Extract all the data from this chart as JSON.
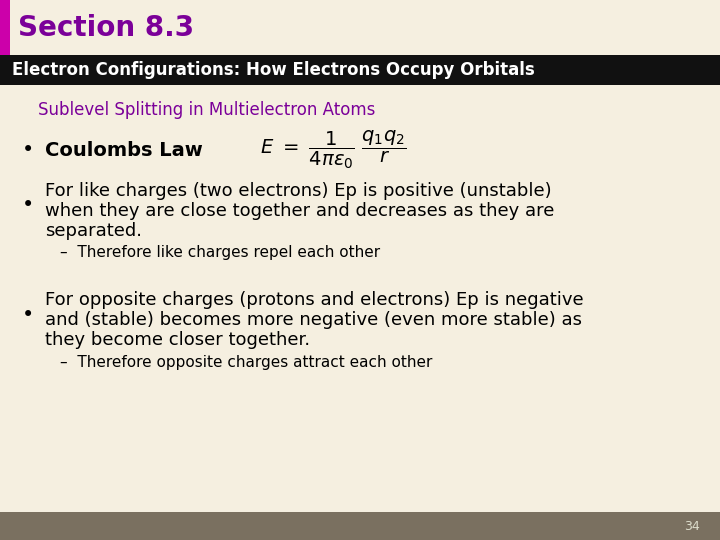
{
  "title": "Section 8.3",
  "title_color": "#7B0099",
  "title_fontsize": 20,
  "header_text": "Electron Configurations: How Electrons Occupy Orbitals",
  "header_bg": "#111111",
  "header_text_color": "#FFFFFF",
  "header_fontsize": 12,
  "subtitle": "Sublevel Splitting in Multielectron Atoms",
  "subtitle_color": "#7B0099",
  "subtitle_fontsize": 12,
  "bg_color": "#F5EFE0",
  "title_bar_color": "#CC00AA",
  "bullet1_bold": "Coulombs Law",
  "bullet2_line1": "For like charges (two electrons) Ep is positive (unstable)",
  "bullet2_line2": "when they are close together and decreases as they are",
  "bullet2_line3": "separated.",
  "bullet2_sub": "–  Therefore like charges repel each other",
  "bullet3_line1": "For opposite charges (protons and electrons) Ep is negative",
  "bullet3_line2": "and (stable) becomes more negative (even more stable) as",
  "bullet3_line3": "they become closer together.",
  "bullet3_sub": "–  Therefore opposite charges attract each other",
  "page_number": "34",
  "footer_color": "#7A7060",
  "body_fontsize": 13,
  "sub_fontsize": 11
}
